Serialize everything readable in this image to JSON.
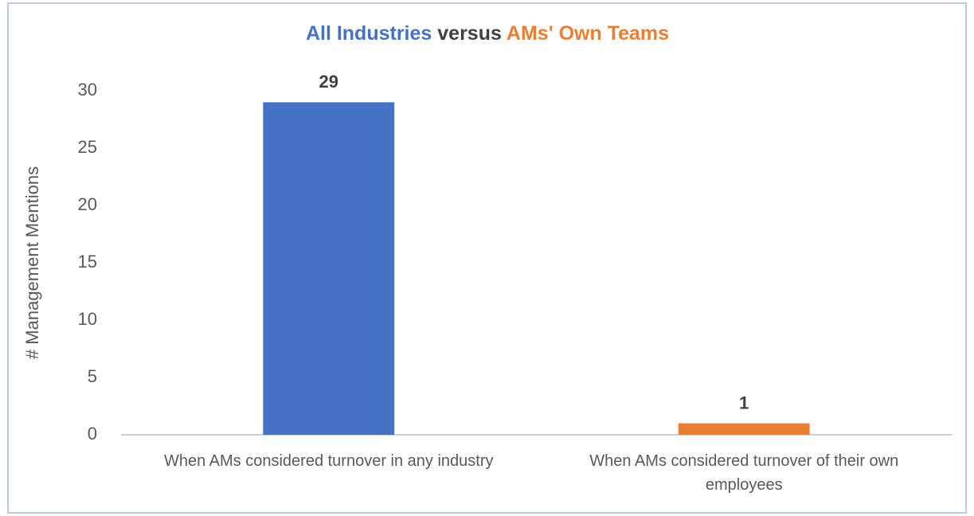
{
  "chart_data": {
    "type": "bar",
    "title": [
      "All Industries",
      "versus",
      "AMs' Own Teams"
    ],
    "title_colors": [
      "#4472c4",
      "#404040",
      "#ed7d31"
    ],
    "y_label": "# Management Mentions",
    "categories": [
      "When AMs considered turnover in any industry",
      "When AMs considered turnover of their own employees"
    ],
    "values": [
      29,
      1
    ],
    "colors": [
      "#4472c4",
      "#ed7d31"
    ],
    "ylim": [
      0,
      30
    ],
    "yticks": [
      0,
      5,
      10,
      15,
      20,
      25,
      30
    ],
    "grid": false
  }
}
